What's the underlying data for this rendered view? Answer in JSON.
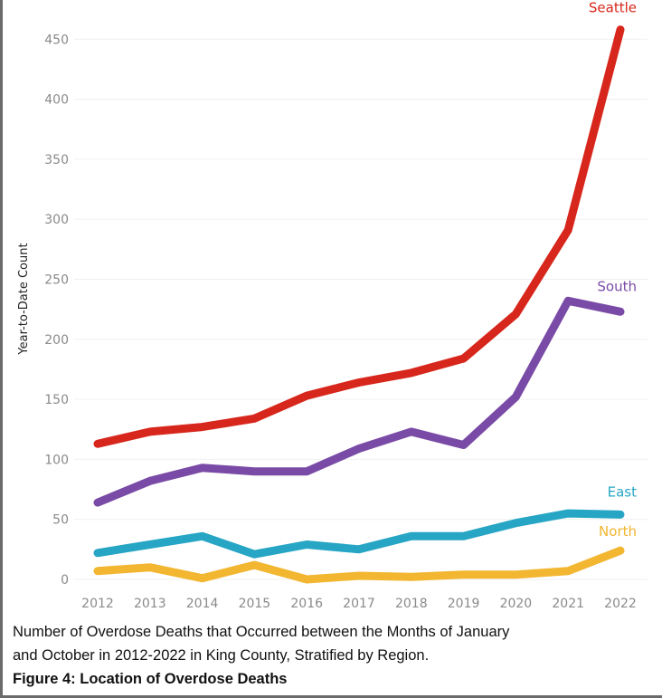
{
  "chart_data": {
    "type": "line",
    "title": "",
    "xlabel": "",
    "ylabel": "Year-to-Date Count",
    "x": [
      "2012",
      "2013",
      "2014",
      "2015",
      "2016",
      "2017",
      "2018",
      "2019",
      "2020",
      "2021",
      "2022"
    ],
    "ylim": [
      0,
      460
    ],
    "yticks": [
      0,
      50,
      100,
      150,
      200,
      250,
      300,
      350,
      400,
      450
    ],
    "grid": true,
    "legend": "direct labels at line ends",
    "series": [
      {
        "name": "Seattle",
        "color": "#d7261b",
        "values": [
          113,
          123,
          127,
          134,
          153,
          164,
          172,
          184,
          221,
          291,
          458
        ]
      },
      {
        "name": "South",
        "color": "#7a4ba6",
        "values": [
          64,
          82,
          93,
          90,
          90,
          109,
          123,
          112,
          152,
          232,
          223
        ]
      },
      {
        "name": "East",
        "color": "#26a6c4",
        "values": [
          22,
          29,
          36,
          21,
          29,
          25,
          36,
          36,
          47,
          55,
          54
        ]
      },
      {
        "name": "North",
        "color": "#f2b630",
        "values": [
          7,
          10,
          1,
          12,
          0,
          3,
          2,
          4,
          4,
          7,
          24
        ]
      }
    ]
  },
  "caption": {
    "line1": "Number of Overdose Deaths that Occurred between the Months of January",
    "line2": "and October in 2012-2022 in King County, Stratified by Region.",
    "figure": "Figure 4: Location of Overdose Deaths"
  }
}
